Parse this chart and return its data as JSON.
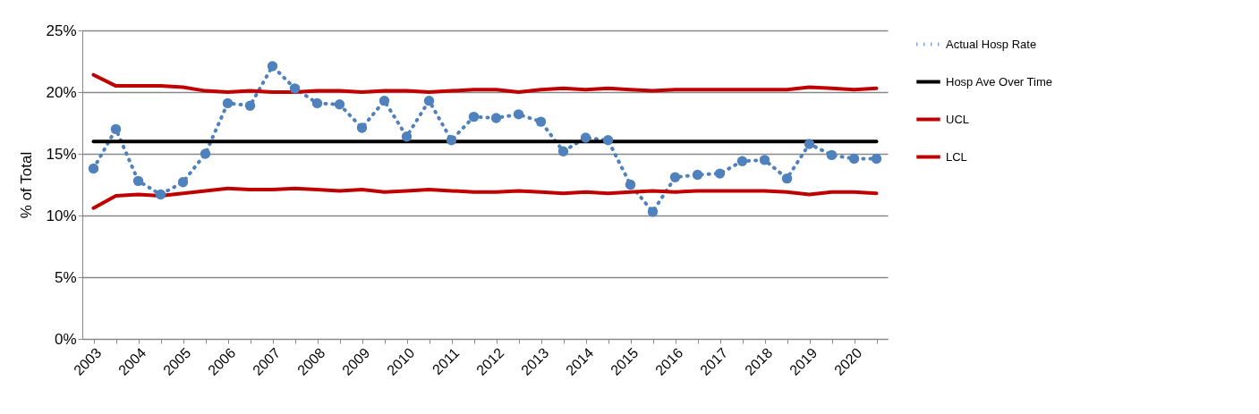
{
  "chart_data": {
    "type": "line",
    "ylabel": "% of Total",
    "categories": [
      "2003",
      null,
      "2004",
      null,
      "2005",
      null,
      "2006",
      null,
      "2007",
      null,
      "2008",
      null,
      "2009",
      null,
      "2010",
      null,
      "2011",
      null,
      "2012",
      null,
      "2013",
      null,
      "2014",
      null,
      "2015",
      null,
      "2016",
      null,
      "2017",
      null,
      "2018",
      null,
      "2019",
      null,
      "2020",
      null
    ],
    "series": [
      {
        "name": "Actual Hosp Rate",
        "color": "#4f81bd",
        "marker": "circle",
        "line_style": "dotted",
        "values": [
          13.8,
          17.0,
          12.8,
          11.7,
          12.7,
          15.0,
          19.1,
          18.9,
          22.1,
          20.3,
          19.1,
          19.0,
          17.1,
          19.3,
          16.4,
          19.3,
          16.1,
          18.0,
          17.9,
          18.2,
          17.6,
          15.2,
          16.3,
          16.1,
          12.5,
          10.3,
          13.1,
          13.3,
          13.4,
          14.4,
          14.5,
          13.0,
          15.8,
          14.9,
          14.6,
          14.6
        ]
      },
      {
        "name": "Hosp Ave Over Time",
        "color": "#000000",
        "line_style": "solid",
        "values": [
          16.0,
          16.0,
          16.0,
          16.0,
          16.0,
          16.0,
          16.0,
          16.0,
          16.0,
          16.0,
          16.0,
          16.0,
          16.0,
          16.0,
          16.0,
          16.0,
          16.0,
          16.0,
          16.0,
          16.0,
          16.0,
          16.0,
          16.0,
          16.0,
          16.0,
          16.0,
          16.0,
          16.0,
          16.0,
          16.0,
          16.0,
          16.0,
          16.0,
          16.0,
          16.0,
          16.0
        ]
      },
      {
        "name": "UCL",
        "color": "#c00000",
        "line_style": "solid",
        "values": [
          21.4,
          20.5,
          20.5,
          20.5,
          20.4,
          20.1,
          20.0,
          20.1,
          20.0,
          20.0,
          20.1,
          20.1,
          20.0,
          20.1,
          20.1,
          20.0,
          20.1,
          20.2,
          20.2,
          20.0,
          20.2,
          20.3,
          20.2,
          20.3,
          20.2,
          20.1,
          20.2,
          20.2,
          20.2,
          20.2,
          20.2,
          20.2,
          20.4,
          20.3,
          20.2,
          20.3
        ]
      },
      {
        "name": "LCL",
        "color": "#c00000",
        "line_style": "solid",
        "values": [
          10.6,
          11.6,
          11.7,
          11.6,
          11.8,
          12.0,
          12.2,
          12.1,
          12.1,
          12.2,
          12.1,
          12.0,
          12.1,
          11.9,
          12.0,
          12.1,
          12.0,
          11.9,
          11.9,
          12.0,
          11.9,
          11.8,
          11.9,
          11.8,
          11.9,
          12.0,
          11.9,
          12.0,
          12.0,
          12.0,
          12.0,
          11.9,
          11.7,
          11.9,
          11.9,
          11.8
        ]
      }
    ],
    "ylim": [
      0,
      25
    ],
    "yticks": [
      {
        "value": 0,
        "label": "0%"
      },
      {
        "value": 5,
        "label": "5%"
      },
      {
        "value": 10,
        "label": "10%"
      },
      {
        "value": 15,
        "label": "15%"
      },
      {
        "value": 20,
        "label": "20%"
      },
      {
        "value": 25,
        "label": "25%"
      }
    ],
    "grid": "y",
    "legend": "right"
  }
}
